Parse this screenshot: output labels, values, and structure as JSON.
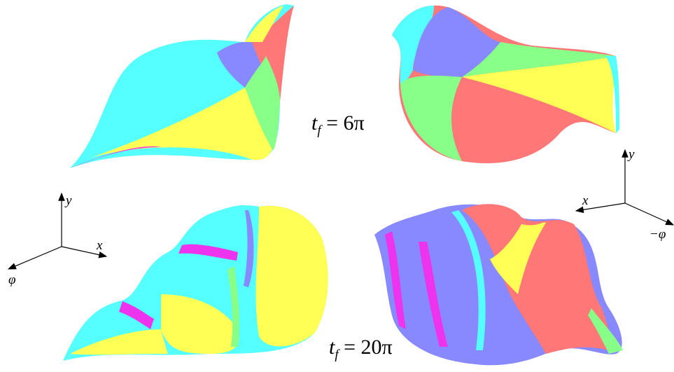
{
  "panels": [
    {
      "time_label": {
        "base": "t",
        "subscript": "f",
        "rest": " = 6π"
      }
    },
    {
      "time_label": {
        "base": "t",
        "subscript": "f",
        "rest": " = 20π"
      }
    }
  ],
  "axes": [
    {
      "y": "y",
      "x": "x",
      "third": "φ"
    },
    {
      "y": "y",
      "x": "x",
      "third": "−φ"
    }
  ]
}
